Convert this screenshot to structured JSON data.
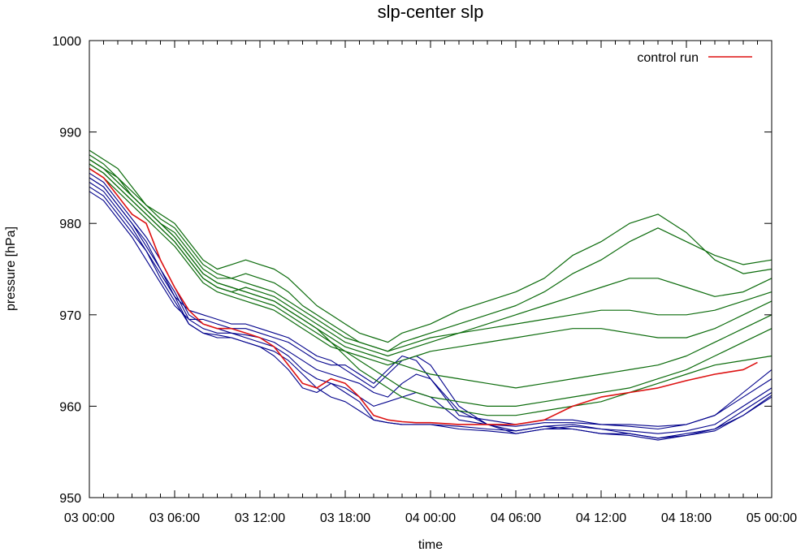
{
  "chart_data": {
    "type": "line",
    "title": "slp-center slp",
    "xlabel": "time",
    "ylabel": "pressure [hPa]",
    "xlim_hours": [
      0,
      48
    ],
    "ylim": [
      950,
      1000
    ],
    "x_ticks": [
      {
        "hours": 0,
        "label": "03 00:00"
      },
      {
        "hours": 6,
        "label": "03 06:00"
      },
      {
        "hours": 12,
        "label": "03 12:00"
      },
      {
        "hours": 18,
        "label": "03 18:00"
      },
      {
        "hours": 24,
        "label": "04 00:00"
      },
      {
        "hours": 30,
        "label": "04 06:00"
      },
      {
        "hours": 36,
        "label": "04 12:00"
      },
      {
        "hours": 42,
        "label": "04 18:00"
      },
      {
        "hours": 48,
        "label": "05 00:00"
      }
    ],
    "y_ticks": [
      950,
      960,
      970,
      980,
      990,
      1000
    ],
    "grid": false,
    "legend": {
      "position": "top-right",
      "entries": [
        {
          "label": "control run",
          "color": "#dd1111"
        }
      ]
    },
    "colors": {
      "control": "#dd1111",
      "blue_ensemble": "#00008b",
      "green_ensemble": "#0b6b0b"
    },
    "control_run": {
      "name": "control run",
      "x_hours": [
        0,
        0.5,
        1,
        1.5,
        2,
        3,
        4,
        5,
        6,
        7,
        8,
        9,
        10,
        11,
        12,
        13,
        14,
        15,
        16,
        17,
        18,
        19,
        20,
        21,
        22,
        23,
        24,
        26,
        28,
        30,
        32,
        34,
        36,
        38,
        40,
        42,
        44,
        46,
        47
      ],
      "y": [
        986,
        985.5,
        985,
        984,
        983,
        981,
        980,
        976,
        973,
        970.5,
        969,
        968.5,
        968.5,
        968,
        967.5,
        966.5,
        964.5,
        962.5,
        962,
        963,
        962.5,
        961,
        959,
        958.5,
        958.3,
        958.2,
        958.2,
        958,
        958,
        958,
        958.5,
        960,
        961,
        961.5,
        962,
        962.8,
        963.5,
        964,
        964.8
      ]
    },
    "ensemble_series": [
      {
        "group": "blue",
        "x_hours": [
          0,
          1,
          2,
          3,
          4,
          5,
          6,
          7,
          8,
          9,
          10,
          11,
          12,
          13,
          14,
          15,
          16,
          17,
          18,
          19,
          20,
          21,
          22,
          23,
          24,
          26,
          28,
          30,
          32,
          34,
          36,
          38,
          40,
          42,
          44,
          46,
          48
        ],
        "y": [
          985,
          984,
          982,
          980,
          978,
          975,
          972,
          969,
          968,
          967.5,
          967.5,
          967,
          966.5,
          965.5,
          964,
          962,
          961.5,
          962.5,
          961.5,
          960.5,
          958.5,
          958.2,
          958,
          958,
          958,
          957.5,
          957.3,
          957,
          957.5,
          957.5,
          957,
          957,
          956.5,
          956.8,
          957.5,
          959,
          961
        ]
      },
      {
        "group": "blue",
        "x_hours": [
          0,
          1,
          2,
          3,
          4,
          5,
          6,
          7,
          8,
          9,
          10,
          11,
          12,
          13,
          14,
          15,
          16,
          17,
          18,
          19,
          20,
          21,
          22,
          23,
          24,
          26,
          28,
          30,
          32,
          34,
          36,
          38,
          40,
          42,
          44,
          46,
          48
        ],
        "y": [
          984.5,
          983.5,
          981.5,
          979.5,
          977,
          974,
          971.5,
          969,
          968,
          967.8,
          967.5,
          967,
          966.5,
          966,
          965,
          963.5,
          962,
          961,
          960.5,
          959.5,
          958.5,
          958.2,
          958,
          958,
          958,
          957.8,
          957.5,
          957.3,
          957.8,
          958,
          957.5,
          957.3,
          957,
          957.3,
          958,
          960,
          962
        ]
      },
      {
        "group": "blue",
        "x_hours": [
          0,
          1,
          2,
          3,
          4,
          5,
          6,
          7,
          8,
          9,
          10,
          11,
          12,
          13,
          14,
          15,
          16,
          17,
          18,
          19,
          20,
          21,
          22,
          23,
          24,
          26,
          28,
          30,
          32,
          34,
          36,
          38,
          40,
          42,
          44,
          46,
          48
        ],
        "y": [
          985.5,
          984.5,
          982.5,
          980.5,
          978.5,
          976,
          973,
          970,
          969,
          968.5,
          968,
          967.8,
          967.5,
          967,
          966,
          965,
          964,
          963.5,
          963,
          962.5,
          961.5,
          961,
          962.5,
          963.5,
          963,
          959,
          958.5,
          958,
          958.5,
          958.5,
          958,
          958,
          957.8,
          958,
          959,
          961,
          963
        ]
      },
      {
        "group": "blue",
        "x_hours": [
          0,
          1,
          2,
          3,
          4,
          5,
          6,
          7,
          8,
          9,
          10,
          11,
          12,
          13,
          14,
          15,
          16,
          17,
          18,
          19,
          20,
          21,
          22,
          23,
          24,
          26,
          28,
          30,
          32,
          34,
          36,
          38,
          40,
          42,
          44,
          46,
          48
        ],
        "y": [
          984,
          983,
          981,
          979,
          977,
          974.5,
          972,
          970.5,
          970,
          969.5,
          969,
          969,
          968.5,
          968,
          967.5,
          966.5,
          965.5,
          965,
          964,
          963,
          962,
          963.5,
          965,
          965.5,
          964.5,
          960,
          958,
          957,
          957.5,
          957.8,
          957.5,
          957,
          956.5,
          957,
          957.5,
          959.5,
          961.5
        ]
      },
      {
        "group": "blue",
        "x_hours": [
          0,
          1,
          2,
          3,
          4,
          5,
          6,
          7,
          8,
          9,
          10,
          11,
          12,
          13,
          14,
          15,
          16,
          17,
          18,
          19,
          20,
          21,
          22,
          23,
          24,
          26,
          28,
          30,
          32,
          34,
          36,
          38,
          40,
          42,
          44,
          46,
          48
        ],
        "y": [
          985,
          984,
          982,
          980,
          977.5,
          975,
          972.5,
          969.5,
          968.5,
          968,
          968,
          967.5,
          967,
          966.5,
          965.5,
          964,
          963,
          962.5,
          962,
          961,
          960,
          960.5,
          961,
          961.5,
          961,
          958.5,
          958,
          957.8,
          958.2,
          958.2,
          958,
          957.8,
          957.5,
          958,
          959,
          961.5,
          964
        ]
      },
      {
        "group": "blue",
        "x_hours": [
          0,
          1,
          2,
          3,
          4,
          5,
          6,
          7,
          8,
          9,
          10,
          11,
          12,
          13,
          14,
          15,
          16,
          17,
          18,
          19,
          20,
          21,
          22,
          23,
          24,
          26,
          28,
          30,
          32,
          34,
          36,
          38,
          40,
          42,
          44,
          46,
          48
        ],
        "y": [
          983.5,
          982.5,
          980.5,
          978.5,
          976,
          973.5,
          971,
          969.5,
          969.5,
          969,
          968.5,
          968.5,
          968,
          967.5,
          967,
          966,
          965,
          964.5,
          964.5,
          963.5,
          962.5,
          964,
          965.5,
          965,
          963,
          959.5,
          958,
          957.3,
          957.8,
          957.5,
          957,
          956.8,
          956.3,
          956.8,
          957.3,
          959,
          961.2
        ]
      },
      {
        "group": "green",
        "x_hours": [
          0,
          1,
          2,
          3,
          4,
          5,
          6,
          7,
          8,
          9,
          10,
          11,
          12,
          13,
          14,
          15,
          16,
          17,
          18,
          19,
          20,
          21,
          22,
          23,
          24,
          26,
          28,
          30,
          32,
          34,
          36,
          38,
          40,
          42,
          44,
          46,
          48
        ],
        "y": [
          988,
          987,
          986,
          984,
          982,
          981,
          980,
          978,
          976,
          975,
          975.5,
          976,
          975.5,
          975,
          974,
          972.5,
          971,
          970,
          969,
          968,
          967.5,
          967,
          968,
          968.5,
          969,
          970.5,
          971.5,
          972.5,
          974,
          976.5,
          978,
          980,
          981,
          979,
          976,
          974.5,
          975
        ]
      },
      {
        "group": "green",
        "x_hours": [
          0,
          1,
          2,
          3,
          4,
          5,
          6,
          7,
          8,
          9,
          10,
          11,
          12,
          13,
          14,
          15,
          16,
          17,
          18,
          19,
          20,
          21,
          22,
          23,
          24,
          26,
          28,
          30,
          32,
          34,
          36,
          38,
          40,
          42,
          44,
          46,
          48
        ],
        "y": [
          987,
          986,
          985,
          983,
          981.5,
          980,
          979,
          977,
          975,
          974,
          974,
          974.5,
          974,
          973.5,
          972.5,
          971,
          970,
          969,
          968,
          967,
          966.5,
          966,
          967,
          967.5,
          968,
          969,
          970,
          971,
          972.5,
          974.5,
          976,
          978,
          979.5,
          978,
          976.5,
          975.5,
          976
        ]
      },
      {
        "group": "green",
        "x_hours": [
          0,
          1,
          2,
          3,
          4,
          5,
          6,
          7,
          8,
          9,
          10,
          11,
          12,
          13,
          14,
          15,
          16,
          17,
          18,
          19,
          20,
          21,
          22,
          23,
          24,
          26,
          28,
          30,
          32,
          34,
          36,
          38,
          40,
          42,
          44,
          46,
          48
        ],
        "y": [
          986.5,
          985.5,
          984,
          982.5,
          981,
          979.5,
          978,
          976,
          974,
          973,
          972.5,
          973,
          972.5,
          972,
          971,
          970,
          969,
          968,
          967,
          966.5,
          966,
          965.5,
          966,
          966.5,
          967,
          968,
          969,
          970,
          971,
          972,
          973,
          974,
          974,
          973,
          972,
          972.5,
          974
        ]
      },
      {
        "group": "green",
        "x_hours": [
          0,
          1,
          2,
          3,
          4,
          5,
          6,
          7,
          8,
          9,
          10,
          11,
          12,
          13,
          14,
          15,
          16,
          17,
          18,
          19,
          20,
          21,
          22,
          23,
          24,
          26,
          28,
          30,
          32,
          34,
          36,
          38,
          40,
          42,
          44,
          46,
          48
        ],
        "y": [
          987.5,
          986.5,
          985,
          983.5,
          982,
          980.5,
          979.5,
          977.5,
          975.5,
          974.5,
          974,
          973.5,
          973,
          972.5,
          971.5,
          970.5,
          969.5,
          968.5,
          967.5,
          967,
          966.5,
          966,
          966.5,
          967,
          967.5,
          968,
          968.5,
          969,
          969.5,
          970,
          970.5,
          970.5,
          970,
          970,
          970.5,
          971.5,
          972.5
        ]
      },
      {
        "group": "green",
        "x_hours": [
          0,
          1,
          2,
          3,
          4,
          5,
          6,
          7,
          8,
          9,
          10,
          11,
          12,
          13,
          14,
          15,
          16,
          17,
          18,
          19,
          20,
          21,
          22,
          23,
          24,
          26,
          28,
          30,
          32,
          34,
          36,
          38,
          40,
          42,
          44,
          46,
          48
        ],
        "y": [
          986,
          985,
          983.5,
          982,
          980.5,
          979,
          977.5,
          975.5,
          973.5,
          972.5,
          972,
          971.5,
          971,
          970.5,
          969.5,
          968.5,
          967.5,
          966.5,
          966,
          965.5,
          965,
          964.5,
          965,
          965.5,
          966,
          966.5,
          967,
          967.5,
          968,
          968.5,
          968.5,
          968,
          967.5,
          967.5,
          968.5,
          970,
          971.5
        ]
      },
      {
        "group": "green",
        "x_hours": [
          0,
          1,
          2,
          3,
          4,
          5,
          6,
          7,
          8,
          9,
          10,
          11,
          12,
          13,
          14,
          15,
          16,
          17,
          18,
          19,
          20,
          21,
          22,
          23,
          24,
          26,
          28,
          30,
          32,
          34,
          36,
          38,
          40,
          42,
          44,
          46,
          48
        ],
        "y": [
          987,
          986,
          984.5,
          983,
          981.5,
          980,
          978.5,
          976.5,
          974.5,
          973.5,
          973,
          972.5,
          972,
          971.5,
          970.5,
          969.5,
          968.5,
          967.5,
          966.5,
          966,
          965.5,
          965,
          964.5,
          964,
          963.5,
          963,
          962.5,
          962,
          962.5,
          963,
          963.5,
          964,
          964.5,
          965.5,
          967,
          968.5,
          970
        ]
      },
      {
        "group": "green",
        "x_hours": [
          0,
          1,
          2,
          3,
          4,
          5,
          6,
          7,
          8,
          9,
          10,
          11,
          12,
          13,
          14,
          15,
          16,
          17,
          18,
          19,
          20,
          21,
          22,
          23,
          24,
          26,
          28,
          30,
          32,
          34,
          36,
          38,
          40,
          42,
          44,
          46,
          48
        ],
        "y": [
          986.5,
          985.5,
          984,
          982.5,
          981,
          979.5,
          978,
          976,
          974,
          973,
          972.5,
          972,
          971.5,
          971,
          970,
          969,
          968,
          967,
          966,
          965,
          964,
          963,
          962,
          961.5,
          961,
          960.5,
          960,
          960,
          960.5,
          961,
          961.5,
          962,
          963,
          964,
          965.5,
          967,
          968.5
        ]
      },
      {
        "group": "green",
        "x_hours": [
          0,
          1,
          2,
          3,
          4,
          5,
          6,
          7,
          8,
          9,
          10,
          11,
          12,
          13,
          14,
          15,
          16,
          17,
          18,
          19,
          20,
          21,
          22,
          23,
          24,
          26,
          28,
          30,
          32,
          34,
          36,
          38,
          40,
          42,
          44,
          46,
          48
        ],
        "y": [
          987,
          986,
          984.5,
          983,
          981.5,
          980,
          978.5,
          976.5,
          974.5,
          973.5,
          973,
          972.5,
          972,
          971.5,
          970.5,
          969.5,
          968.5,
          967,
          965.5,
          964,
          963,
          962,
          961,
          960.5,
          960,
          959.5,
          959,
          959,
          959.5,
          960,
          960.5,
          961.5,
          962.5,
          963.5,
          964.5,
          965,
          965.5
        ]
      }
    ]
  }
}
